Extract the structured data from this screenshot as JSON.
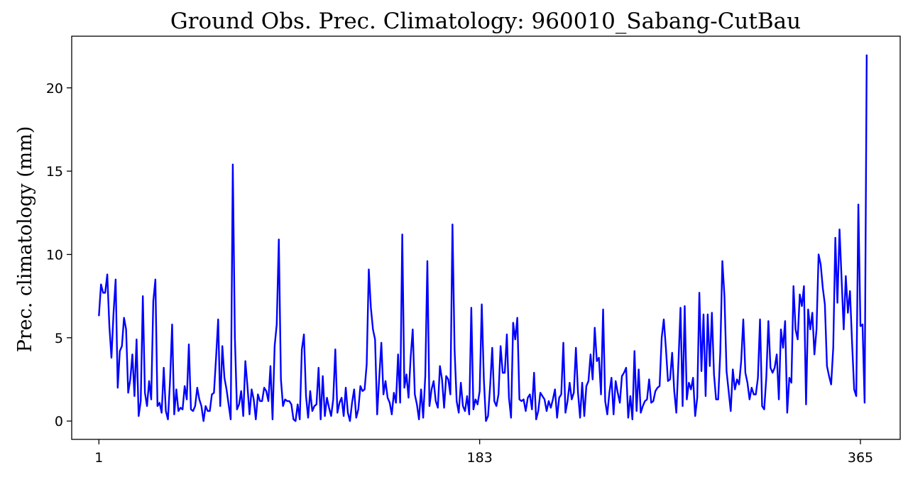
{
  "chart_data": {
    "type": "line",
    "title": "Ground Obs. Prec. Climatology: 960010_Sabang-CutBau",
    "xlabel": "",
    "ylabel": "Prec. climatology (mm)",
    "xlim": [
      -12,
      384
    ],
    "ylim": [
      -1.1,
      23.1
    ],
    "xticks": [
      1,
      183,
      365
    ],
    "yticks": [
      0,
      5,
      10,
      15,
      20
    ],
    "grid": false,
    "color": "#0000ff",
    "series": [
      {
        "x_start": 1,
        "values": [
          6.3,
          8.2,
          7.7,
          7.7,
          8.8,
          5.7,
          3.8,
          6.5,
          8.5,
          2.0,
          4.2,
          4.5,
          6.2,
          5.5,
          1.7,
          2.5,
          4.0,
          1.5,
          4.9,
          0.3,
          1.2,
          7.5,
          1.7,
          0.9,
          2.4,
          1.3,
          7.2,
          8.5,
          0.9,
          1.1,
          0.5,
          3.2,
          0.6,
          0.1,
          2.4,
          5.8,
          0.4,
          1.9,
          0.6,
          0.8,
          0.7,
          2.1,
          1.3,
          4.6,
          0.7,
          0.6,
          0.9,
          2.0,
          1.3,
          0.9,
          0.0,
          0.9,
          0.6,
          0.6,
          1.6,
          1.7,
          3.8,
          6.1,
          0.9,
          4.5,
          2.6,
          1.9,
          1.0,
          0.1,
          15.4,
          5.0,
          0.7,
          1.0,
          1.8,
          0.3,
          3.6,
          2.1,
          0.4,
          1.9,
          1.3,
          0.1,
          1.6,
          1.2,
          1.2,
          2.0,
          1.8,
          1.2,
          3.3,
          0.1,
          4.5,
          5.8,
          10.9,
          2.5,
          0.9,
          1.3,
          1.2,
          1.2,
          1.0,
          0.1,
          0.0,
          1.0,
          0.1,
          4.3,
          5.2,
          1.5,
          0.2,
          1.8,
          0.6,
          0.9,
          1.0,
          3.2,
          0.1,
          2.7,
          0.3,
          1.4,
          0.8,
          0.3,
          1.3,
          4.3,
          0.5,
          1.1,
          1.4,
          0.3,
          2.0,
          0.5,
          0.0,
          1.1,
          1.9,
          0.2,
          0.7,
          2.1,
          1.8,
          1.9,
          3.4,
          9.1,
          6.8,
          5.5,
          4.9,
          0.4,
          2.6,
          4.7,
          1.6,
          2.4,
          1.4,
          1.1,
          0.4,
          1.7,
          1.1,
          4.0,
          1.1,
          11.2,
          2.0,
          2.8,
          1.4,
          3.8,
          5.5,
          1.6,
          1.0,
          0.1,
          1.9,
          0.2,
          2.7,
          9.6,
          0.9,
          1.9,
          2.4,
          1.2,
          0.8,
          3.3,
          2.5,
          0.8,
          2.7,
          2.5,
          1.6,
          11.8,
          4.3,
          1.2,
          0.5,
          2.3,
          0.9,
          0.6,
          1.5,
          0.4,
          6.8,
          0.7,
          1.3,
          1.0,
          1.8,
          7.0,
          2.5,
          0.0,
          0.3,
          2.1,
          4.4,
          1.2,
          0.9,
          1.6,
          4.5,
          2.9,
          2.9,
          5.2,
          1.4,
          0.2,
          5.9,
          4.9,
          6.2,
          1.3,
          1.2,
          1.3,
          0.6,
          1.4,
          1.6,
          0.7,
          2.9,
          0.1,
          0.6,
          1.7,
          1.5,
          1.3,
          0.6,
          1.2,
          0.8,
          1.3,
          1.9,
          0.2,
          1.4,
          1.6,
          4.7,
          0.5,
          1.2,
          2.3,
          1.3,
          1.7,
          4.4,
          1.7,
          0.2,
          2.3,
          0.3,
          2.1,
          2.4,
          4.0,
          2.5,
          5.6,
          3.6,
          3.8,
          1.6,
          6.7,
          1.2,
          0.4,
          1.7,
          2.6,
          0.4,
          2.4,
          1.7,
          1.1,
          2.7,
          2.9,
          3.2,
          0.2,
          1.5,
          0.1,
          4.2,
          0.6,
          3.1,
          0.5,
          0.9,
          1.2,
          1.3,
          2.5,
          1.1,
          1.2,
          1.8,
          2.0,
          2.1,
          5.0,
          6.1,
          4.4,
          2.4,
          2.5,
          4.1,
          1.8,
          0.5,
          3.5,
          6.8,
          0.9,
          6.9,
          1.3,
          2.3,
          1.9,
          2.6,
          0.3,
          1.4,
          7.7,
          3.0,
          6.4,
          1.5,
          6.4,
          3.3,
          6.5,
          2.8,
          1.3,
          1.3,
          4.1,
          9.6,
          7.5,
          3.0,
          1.8,
          0.6,
          3.1,
          1.9,
          2.5,
          2.2,
          3.6,
          6.1,
          2.9,
          2.3,
          1.3,
          2.0,
          1.6,
          1.6,
          2.6,
          6.1,
          0.9,
          0.7,
          2.6,
          6.0,
          3.2,
          2.9,
          3.2,
          4.0,
          1.3,
          5.5,
          4.4,
          6.0,
          0.5,
          2.6,
          2.3,
          8.1,
          5.5,
          4.9,
          7.6,
          6.9,
          8.1,
          1.0,
          6.7,
          5.5,
          6.5,
          4.0,
          5.5,
          10.0,
          9.4,
          8.0,
          7.0,
          3.3,
          2.7,
          2.2,
          4.4,
          11.0,
          7.1,
          11.5,
          8.5,
          5.5,
          8.7,
          6.5,
          7.8,
          4.7,
          1.9,
          1.5,
          13.0,
          5.7,
          5.8,
          1.1,
          22.0
        ]
      }
    ]
  }
}
